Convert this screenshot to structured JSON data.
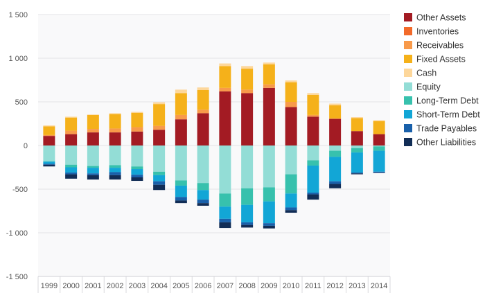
{
  "chart_data": {
    "type": "bar",
    "stacked": true,
    "title": "",
    "xlabel": "",
    "ylabel": "",
    "ylim": [
      -1500,
      1500
    ],
    "y_ticks": [
      -1500,
      -1000,
      -500,
      0,
      500,
      1000,
      1500
    ],
    "y_tick_labels": [
      "-1 500",
      "-1 000",
      "-500",
      "0",
      "500",
      "1 000",
      "1 500"
    ],
    "grid": true,
    "legend_position": "right",
    "categories": [
      "1999",
      "2000",
      "2001",
      "2002",
      "2003",
      "2004",
      "2005",
      "2006",
      "2007",
      "2008",
      "2009",
      "2010",
      "2011",
      "2012",
      "2013",
      "2014"
    ],
    "series": [
      {
        "name": "Other Assets",
        "color": "#a31b23",
        "sign": "positive",
        "values": [
          110,
          130,
          150,
          150,
          160,
          180,
          300,
          370,
          620,
          600,
          660,
          440,
          330,
          305,
          165,
          130
        ]
      },
      {
        "name": "Inventories",
        "color": "#f26a2a",
        "sign": "positive",
        "values": [
          0,
          0,
          0,
          0,
          0,
          0,
          0,
          0,
          0,
          0,
          0,
          0,
          0,
          0,
          0,
          0
        ]
      },
      {
        "name": "Receivables",
        "color": "#f89a4a",
        "sign": "positive",
        "values": [
          10,
          40,
          40,
          45,
          50,
          45,
          50,
          40,
          40,
          40,
          40,
          60,
          20,
          5,
          0,
          0
        ]
      },
      {
        "name": "Fixed Assets",
        "color": "#f5b11a",
        "sign": "positive",
        "values": [
          100,
          150,
          160,
          165,
          165,
          250,
          250,
          225,
          250,
          240,
          230,
          225,
          230,
          150,
          150,
          150
        ]
      },
      {
        "name": "Cash",
        "color": "#fdd79b",
        "sign": "positive",
        "values": [
          10,
          10,
          5,
          10,
          10,
          20,
          40,
          30,
          30,
          30,
          20,
          20,
          20,
          20,
          10,
          10
        ]
      },
      {
        "name": "Equity",
        "color": "#93ddd6",
        "sign": "negative",
        "values": [
          -180,
          -220,
          -235,
          -225,
          -240,
          -300,
          -400,
          -430,
          -550,
          -490,
          -480,
          -330,
          -170,
          -60,
          -30,
          -10
        ]
      },
      {
        "name": "Long-Term Debt",
        "color": "#37c1ad",
        "sign": "negative",
        "values": [
          -5,
          -30,
          -20,
          -30,
          -30,
          -40,
          -60,
          -80,
          -150,
          -190,
          -160,
          -220,
          -60,
          -70,
          -50,
          -50
        ]
      },
      {
        "name": "Short-Term Debt",
        "color": "#12a6d6",
        "sign": "negative",
        "values": [
          -25,
          -60,
          -65,
          -50,
          -65,
          -70,
          -130,
          -110,
          -140,
          -200,
          -250,
          -160,
          -310,
          -280,
          -230,
          -240
        ]
      },
      {
        "name": "Trade Payables",
        "color": "#1960aa",
        "sign": "negative",
        "values": [
          -10,
          -20,
          -20,
          -35,
          -30,
          -40,
          -40,
          -40,
          -40,
          -30,
          -30,
          -30,
          -20,
          -30,
          -10,
          -10
        ]
      },
      {
        "name": "Other Liabilities",
        "color": "#112d56",
        "sign": "negative",
        "values": [
          -20,
          -50,
          -50,
          -50,
          -40,
          -60,
          -30,
          -30,
          -65,
          -30,
          -30,
          -30,
          -60,
          -50,
          -10,
          -5
        ]
      }
    ]
  }
}
